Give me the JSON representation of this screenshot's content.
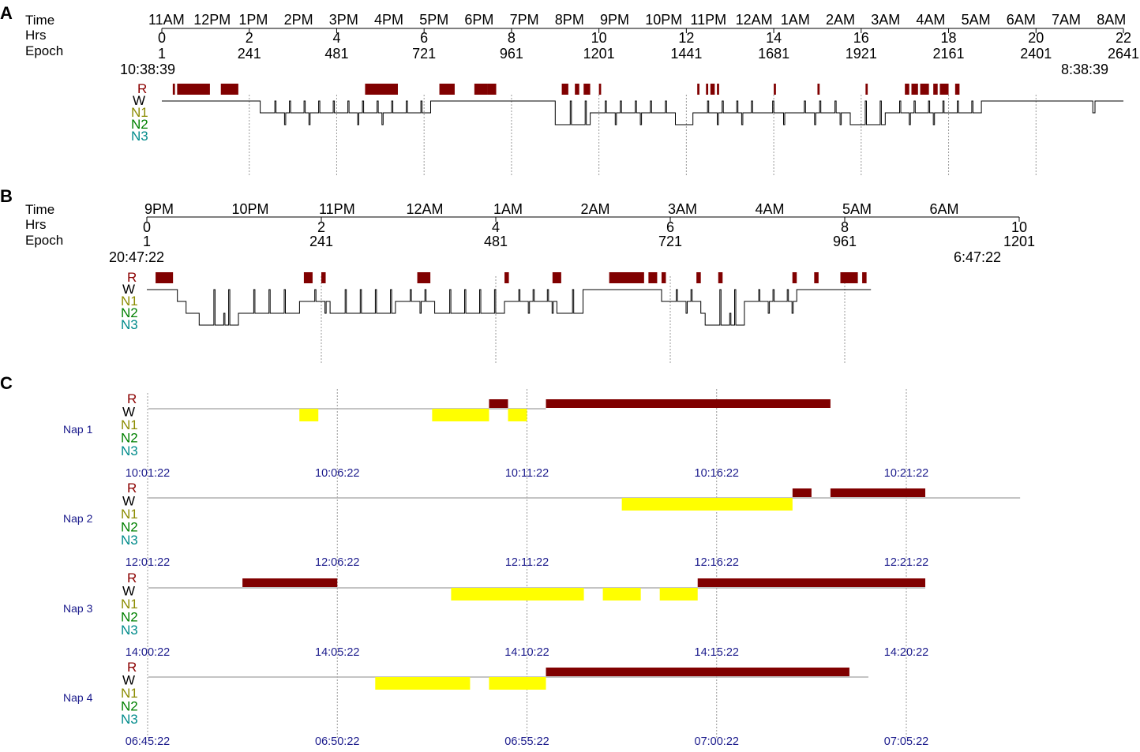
{
  "colors": {
    "rem": "#800000",
    "n1_bar": "#ffff00",
    "label_r": "#8b0000",
    "label_w": "#000000",
    "label_n1": "#8b8b00",
    "label_n2": "#008000",
    "label_n3": "#008b8b",
    "nap_text": "#1a1a8c"
  },
  "chart_data": [
    {
      "panel": "A",
      "type": "line",
      "title": "",
      "header_labels": {
        "time": "Time",
        "hrs": "Hrs",
        "epoch": "Epoch"
      },
      "time_ticks": [
        "11AM",
        "12PM",
        "1PM",
        "2PM",
        "3PM",
        "4PM",
        "5PM",
        "6PM",
        "7PM",
        "8PM",
        "9PM",
        "10PM",
        "11PM",
        "12AM",
        "1AM",
        "2AM",
        "3AM",
        "4AM",
        "5AM",
        "6AM",
        "7AM",
        "8AM"
      ],
      "hrs_ticks": [
        0,
        2,
        4,
        6,
        8,
        10,
        12,
        14,
        16,
        18,
        20,
        22
      ],
      "epoch_ticks": [
        1,
        241,
        481,
        721,
        961,
        1201,
        1441,
        1681,
        1921,
        2161,
        2401,
        2641
      ],
      "start_time": "10:38:39",
      "end_time": "8:38:39",
      "stages": [
        "R",
        "W",
        "N1",
        "N2",
        "N3"
      ],
      "xlim_hours": [
        0,
        22
      ],
      "rem_periods_hours": [
        [
          0.25,
          0.3
        ],
        [
          0.35,
          1.1
        ],
        [
          1.35,
          1.75
        ],
        [
          4.65,
          5.4
        ],
        [
          6.35,
          6.7
        ],
        [
          7.15,
          7.45
        ],
        [
          7.45,
          7.65
        ],
        [
          9.15,
          9.3
        ],
        [
          9.45,
          9.55
        ],
        [
          9.65,
          9.8
        ],
        [
          10.0,
          10.05
        ],
        [
          12.25,
          12.3
        ],
        [
          12.45,
          12.5
        ],
        [
          12.55,
          12.65
        ],
        [
          12.7,
          12.75
        ],
        [
          14.0,
          14.05
        ],
        [
          15.0,
          15.05
        ],
        [
          16.1,
          16.15
        ],
        [
          17.0,
          17.1
        ],
        [
          17.15,
          17.3
        ],
        [
          17.35,
          17.55
        ],
        [
          17.65,
          17.75
        ],
        [
          17.8,
          18.0
        ],
        [
          18.15,
          18.25
        ]
      ],
      "segments_hours": [
        {
          "start": 0.0,
          "end": 0.25,
          "stage": "W"
        },
        {
          "start": 0.25,
          "end": 2.25,
          "stage": "W"
        },
        {
          "start": 2.25,
          "end": 6.15,
          "stage": "N1"
        },
        {
          "start": 6.15,
          "end": 9.0,
          "stage": "W"
        },
        {
          "start": 9.0,
          "end": 9.8,
          "stage": "N2"
        },
        {
          "start": 9.8,
          "end": 11.75,
          "stage": "N1"
        },
        {
          "start": 11.75,
          "end": 12.15,
          "stage": "N2"
        },
        {
          "start": 12.15,
          "end": 13.6,
          "stage": "N1"
        },
        {
          "start": 13.6,
          "end": 14.35,
          "stage": "N1"
        },
        {
          "start": 14.35,
          "end": 15.75,
          "stage": "N1"
        },
        {
          "start": 15.75,
          "end": 16.55,
          "stage": "N2"
        },
        {
          "start": 16.55,
          "end": 18.75,
          "stage": "N1"
        },
        {
          "start": 18.75,
          "end": 21.3,
          "stage": "W"
        },
        {
          "start": 21.3,
          "end": 21.35,
          "stage": "N1"
        },
        {
          "start": 21.35,
          "end": 22.0,
          "stage": "W"
        }
      ]
    },
    {
      "panel": "B",
      "type": "line",
      "title": "",
      "header_labels": {
        "time": "Time",
        "hrs": "Hrs",
        "epoch": "Epoch"
      },
      "time_ticks": [
        "9PM",
        "10PM",
        "11PM",
        "12AM",
        "1AM",
        "2AM",
        "3AM",
        "4AM",
        "5AM",
        "6AM"
      ],
      "hrs_ticks": [
        0,
        2,
        4,
        6,
        8,
        10
      ],
      "epoch_ticks": [
        1,
        241,
        481,
        721,
        961,
        1201
      ],
      "start_time": "20:47:22",
      "end_time": "6:47:22",
      "stages": [
        "R",
        "W",
        "N1",
        "N2",
        "N3"
      ],
      "xlim_hours": [
        0,
        10
      ],
      "rem_periods_hours": [
        [
          0.1,
          0.3
        ],
        [
          1.8,
          1.9
        ],
        [
          2.0,
          2.05
        ],
        [
          3.1,
          3.25
        ],
        [
          4.1,
          4.15
        ],
        [
          4.65,
          4.75
        ],
        [
          5.3,
          5.7
        ],
        [
          5.75,
          5.85
        ],
        [
          5.9,
          5.95
        ],
        [
          6.3,
          6.35
        ],
        [
          6.55,
          6.6
        ],
        [
          7.4,
          7.45
        ],
        [
          7.65,
          7.7
        ],
        [
          7.95,
          8.15
        ],
        [
          8.2,
          8.25
        ]
      ],
      "segments_hours": [
        {
          "start": 0.0,
          "end": 0.35,
          "stage": "W"
        },
        {
          "start": 0.35,
          "end": 0.45,
          "stage": "N1"
        },
        {
          "start": 0.45,
          "end": 0.6,
          "stage": "N2"
        },
        {
          "start": 0.6,
          "end": 1.05,
          "stage": "N3"
        },
        {
          "start": 1.05,
          "end": 1.75,
          "stage": "N2"
        },
        {
          "start": 1.75,
          "end": 2.1,
          "stage": "N1"
        },
        {
          "start": 2.1,
          "end": 2.85,
          "stage": "N2"
        },
        {
          "start": 2.85,
          "end": 3.3,
          "stage": "N1"
        },
        {
          "start": 3.3,
          "end": 4.1,
          "stage": "N2"
        },
        {
          "start": 4.1,
          "end": 4.7,
          "stage": "N1"
        },
        {
          "start": 4.7,
          "end": 5.0,
          "stage": "N2"
        },
        {
          "start": 5.0,
          "end": 5.9,
          "stage": "W"
        },
        {
          "start": 5.9,
          "end": 6.35,
          "stage": "N1"
        },
        {
          "start": 6.35,
          "end": 6.4,
          "stage": "N2"
        },
        {
          "start": 6.4,
          "end": 6.85,
          "stage": "N3"
        },
        {
          "start": 6.85,
          "end": 7.45,
          "stage": "N1"
        },
        {
          "start": 7.45,
          "end": 8.0,
          "stage": "W"
        },
        {
          "start": 8.0,
          "end": 8.3,
          "stage": "W"
        }
      ]
    },
    {
      "panel": "C",
      "type": "bar",
      "title": "",
      "stages": [
        "R",
        "W",
        "N1",
        "N2",
        "N3"
      ],
      "xlim_minutes": [
        0,
        23
      ],
      "naps": [
        {
          "name": "Nap 1",
          "time_ticks": [
            "10:01:22",
            "10:06:22",
            "10:11:22",
            "10:16:22",
            "10:21:22"
          ],
          "baseline_end_min": 10.5,
          "n1": [
            [
              4.0,
              4.5
            ],
            [
              7.5,
              9.0
            ],
            [
              9.5,
              10.0
            ]
          ],
          "rem": [
            [
              9.0,
              9.5
            ],
            [
              10.5,
              18.0
            ]
          ]
        },
        {
          "name": "Nap 2",
          "time_ticks": [
            "12:01:22",
            "12:06:22",
            "12:11:22",
            "12:16:22",
            "12:21:22"
          ],
          "baseline_end_min": 23.0,
          "n1": [
            [
              12.5,
              17.0
            ]
          ],
          "rem": [
            [
              17.0,
              17.5
            ],
            [
              18.0,
              20.5
            ]
          ]
        },
        {
          "name": "Nap 3",
          "time_ticks": [
            "14:00:22",
            "14:05:22",
            "14:10:22",
            "14:15:22",
            "14:20:22"
          ],
          "baseline_end_min": 20.5,
          "n1": [
            [
              8.0,
              11.5
            ],
            [
              12.0,
              13.0
            ],
            [
              13.5,
              14.5
            ]
          ],
          "rem": [
            [
              2.5,
              5.0
            ],
            [
              14.5,
              20.5
            ]
          ]
        },
        {
          "name": "Nap 4",
          "time_ticks": [
            "06:45:22",
            "06:50:22",
            "06:55:22",
            "07:00:22",
            "07:05:22"
          ],
          "baseline_end_min": 19.0,
          "n1": [
            [
              6.0,
              8.5
            ],
            [
              9.0,
              10.5
            ]
          ],
          "rem": [
            [
              10.5,
              18.5
            ]
          ]
        }
      ]
    }
  ]
}
